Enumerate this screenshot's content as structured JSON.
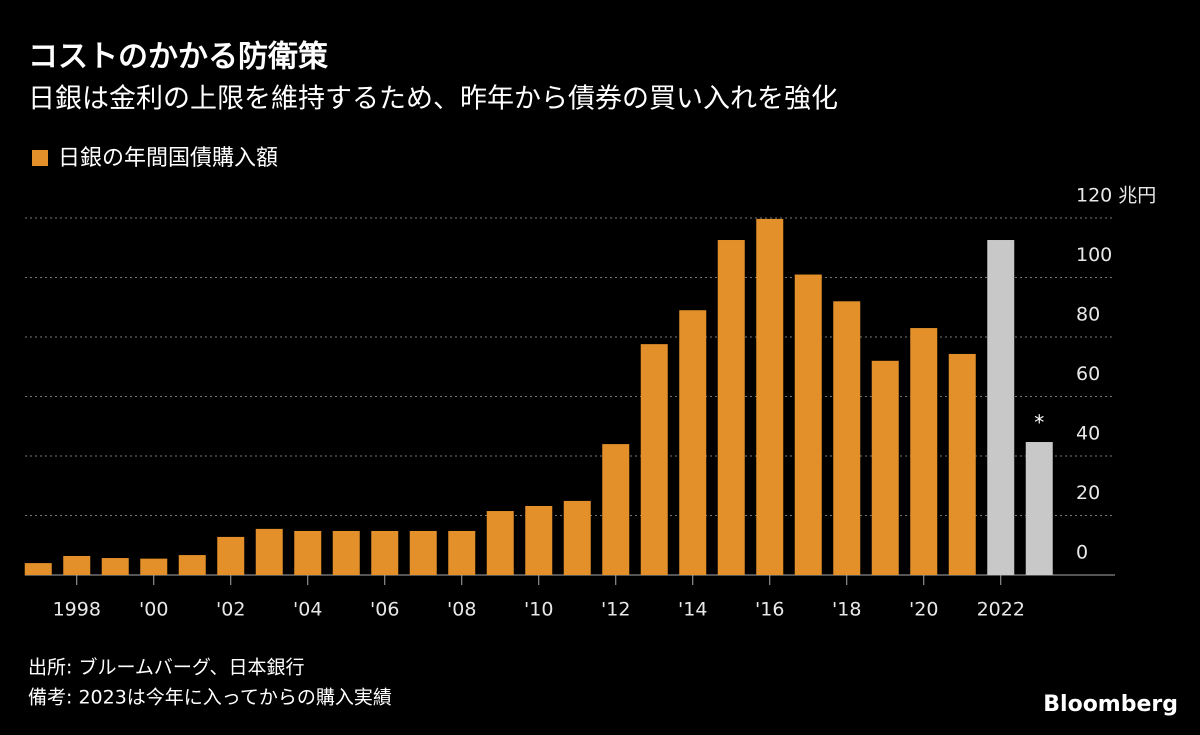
{
  "chart_data": {
    "type": "bar",
    "title": "コストのかかる防衛策",
    "subtitle": "日銀は金利の上限を維持するため、昨年から債券の買い入れを強化",
    "series_name": "日銀の年間国債購入額",
    "categories": [
      null,
      "1998",
      null,
      "'00",
      null,
      "'02",
      null,
      "'04",
      null,
      "'06",
      null,
      "'08",
      null,
      "'10",
      null,
      "'12",
      null,
      "'14",
      null,
      "'16",
      null,
      "'18",
      null,
      "'20",
      null,
      "2022",
      null
    ],
    "values": [
      4,
      6.4,
      5.7,
      5.5,
      6.7,
      12.8,
      15.5,
      14.8,
      14.8,
      14.8,
      14.8,
      14.8,
      21.5,
      23.2,
      24.9,
      44,
      77.6,
      89,
      112.6,
      119.7,
      101,
      92,
      72,
      83,
      74.3,
      112.6,
      44.7
    ],
    "colors": [
      "#e3902a",
      "#e3902a",
      "#e3902a",
      "#e3902a",
      "#e3902a",
      "#e3902a",
      "#e3902a",
      "#e3902a",
      "#e3902a",
      "#e3902a",
      "#e3902a",
      "#e3902a",
      "#e3902a",
      "#e3902a",
      "#e3902a",
      "#e3902a",
      "#e3902a",
      "#e3902a",
      "#e3902a",
      "#e3902a",
      "#e3902a",
      "#e3902a",
      "#e3902a",
      "#e3902a",
      "#e3902a",
      "#c8c8c8",
      "#c8c8c8"
    ],
    "color": "#e3902a",
    "annotation": "*",
    "ylim": [
      0,
      120
    ],
    "yticks": [
      0,
      20,
      40,
      60,
      80,
      100,
      {
        "value": 120,
        "label": "120 兆円"
      }
    ],
    "grid": true,
    "source": "出所: ブルームバーグ、日本銀行",
    "note": "備考: 2023は今年に入ってからの購入実績",
    "brand": "Bloomberg"
  }
}
